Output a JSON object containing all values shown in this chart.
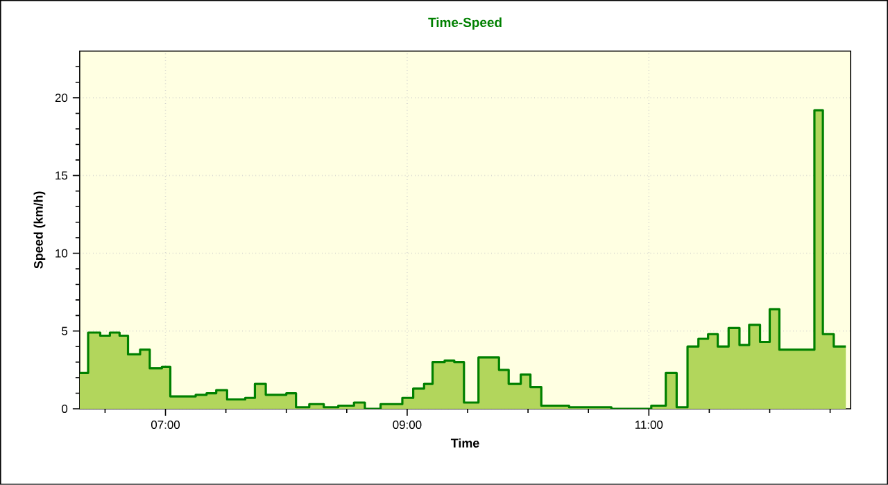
{
  "chart_data": {
    "type": "step",
    "title": "Time-Speed",
    "xlabel": "Time",
    "ylabel": "Speed (km/h)",
    "x": [
      6.29,
      6.36,
      6.46,
      6.54,
      6.62,
      6.69,
      6.79,
      6.87,
      6.97,
      7.04,
      7.25,
      7.34,
      7.42,
      7.51,
      7.66,
      7.74,
      7.83,
      8.0,
      8.08,
      8.19,
      8.31,
      8.43,
      8.56,
      8.65,
      8.78,
      8.96,
      9.05,
      9.14,
      9.21,
      9.31,
      9.39,
      9.47,
      9.59,
      9.76,
      9.84,
      9.94,
      10.02,
      10.11,
      10.34,
      10.69,
      11.02,
      11.14,
      11.23,
      11.32,
      11.41,
      11.49,
      11.57,
      11.66,
      11.75,
      11.83,
      11.92,
      12.0,
      12.08,
      12.37,
      12.44,
      12.53,
      12.63
    ],
    "values": [
      2.3,
      4.9,
      4.7,
      4.9,
      4.7,
      3.5,
      3.8,
      2.6,
      2.7,
      0.8,
      0.9,
      1.0,
      1.2,
      0.6,
      0.7,
      1.6,
      0.9,
      1.0,
      0.1,
      0.3,
      0.1,
      0.2,
      0.4,
      0,
      0.3,
      0.7,
      1.3,
      1.6,
      3.0,
      3.1,
      3.0,
      0.4,
      3.3,
      2.5,
      1.6,
      2.2,
      1.4,
      0.2,
      0.1,
      0.0,
      0.2,
      2.3,
      0.1,
      4.0,
      4.5,
      4.8,
      4.0,
      5.2,
      4.1,
      5.4,
      4.3,
      6.4,
      3.8,
      19.2,
      4.8,
      4.0,
      4.0
    ],
    "color": "#008000",
    "xlim": [
      6.29,
      12.67
    ],
    "ylim": [
      0,
      23
    ],
    "xticks": [
      {
        "value": 6.5,
        "label": null
      },
      {
        "value": 7,
        "label": "07:00"
      },
      {
        "value": 7.5,
        "label": null
      },
      {
        "value": 8,
        "label": null
      },
      {
        "value": 8.5,
        "label": null
      },
      {
        "value": 9,
        "label": "09:00"
      },
      {
        "value": 9.5,
        "label": null
      },
      {
        "value": 10,
        "label": null
      },
      {
        "value": 10.5,
        "label": null
      },
      {
        "value": 11,
        "label": "11:00"
      },
      {
        "value": 11.5,
        "label": null
      },
      {
        "value": 12,
        "label": null
      },
      {
        "value": 12.5,
        "label": null
      }
    ],
    "yticks": [
      0,
      {
        "value": 1,
        "label": null
      },
      {
        "value": 2,
        "label": null
      },
      {
        "value": 3,
        "label": null
      },
      {
        "value": 4,
        "label": null
      },
      5,
      {
        "value": 6,
        "label": null
      },
      {
        "value": 7,
        "label": null
      },
      {
        "value": 8,
        "label": null
      },
      {
        "value": 9,
        "label": null
      },
      10,
      {
        "value": 11,
        "label": null
      },
      {
        "value": 12,
        "label": null
      },
      {
        "value": 13,
        "label": null
      },
      {
        "value": 14,
        "label": null
      },
      15,
      {
        "value": 16,
        "label": null
      },
      {
        "value": 17,
        "label": null
      },
      {
        "value": 18,
        "label": null
      },
      {
        "value": 19,
        "label": null
      },
      20,
      {
        "value": 21,
        "label": null
      },
      {
        "value": 22,
        "label": null
      }
    ],
    "grid": true,
    "marker": "none",
    "line_style": "solid"
  }
}
